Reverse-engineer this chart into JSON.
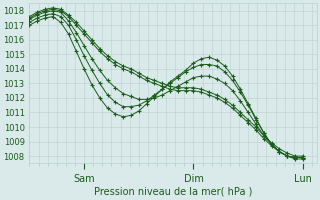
{
  "xlabel": "Pression niveau de la mer( hPa )",
  "bg_color": "#daeaea",
  "grid_color": "#b8d0d0",
  "line_color": "#1a5c1a",
  "ylim": [
    1007.5,
    1018.5
  ],
  "yticks": [
    1008,
    1009,
    1010,
    1011,
    1012,
    1013,
    1014,
    1015,
    1016,
    1017,
    1018
  ],
  "xtick_labels": [
    "Sam",
    "Dim",
    "Lun"
  ],
  "xtick_positions": [
    24,
    72,
    120
  ],
  "xlim": [
    0,
    126
  ],
  "series": [
    [
      1017.5,
      1017.8,
      1018.0,
      1018.1,
      1018.0,
      1017.6,
      1017.0,
      1016.4,
      1015.8,
      1015.2,
      1014.7,
      1014.3,
      1014.0,
      1013.8,
      1013.5,
      1013.2,
      1013.0,
      1012.8,
      1012.6,
      1012.5,
      1012.5,
      1012.5,
      1012.4,
      1012.2,
      1012.0,
      1011.7,
      1011.3,
      1010.8,
      1010.3,
      1009.8,
      1009.2,
      1008.7,
      1008.3,
      1008.0,
      1007.8,
      1007.8
    ],
    [
      1017.6,
      1017.9,
      1018.1,
      1018.2,
      1018.1,
      1017.7,
      1017.2,
      1016.6,
      1016.0,
      1015.4,
      1014.9,
      1014.5,
      1014.2,
      1014.0,
      1013.7,
      1013.4,
      1013.2,
      1013.0,
      1012.8,
      1012.7,
      1012.7,
      1012.7,
      1012.6,
      1012.4,
      1012.2,
      1011.9,
      1011.5,
      1011.0,
      1010.5,
      1010.0,
      1009.4,
      1008.9,
      1008.5,
      1008.2,
      1008.0,
      1008.0
    ],
    [
      1017.4,
      1017.7,
      1017.9,
      1018.0,
      1017.9,
      1017.3,
      1016.5,
      1015.6,
      1014.7,
      1013.9,
      1013.2,
      1012.7,
      1012.3,
      1012.1,
      1011.9,
      1011.9,
      1012.0,
      1012.2,
      1012.5,
      1012.8,
      1013.1,
      1013.4,
      1013.5,
      1013.5,
      1013.3,
      1013.0,
      1012.5,
      1011.8,
      1011.0,
      1010.2,
      1009.4,
      1008.8,
      1008.3,
      1008.0,
      1007.9,
      1007.9
    ],
    [
      1017.2,
      1017.5,
      1017.7,
      1017.8,
      1017.6,
      1017.0,
      1016.0,
      1014.9,
      1013.9,
      1013.0,
      1012.2,
      1011.7,
      1011.4,
      1011.4,
      1011.5,
      1011.8,
      1012.2,
      1012.6,
      1013.0,
      1013.4,
      1013.8,
      1014.1,
      1014.3,
      1014.3,
      1014.2,
      1013.8,
      1013.2,
      1012.4,
      1011.5,
      1010.5,
      1009.6,
      1008.8,
      1008.3,
      1008.0,
      1007.9,
      1007.9
    ],
    [
      1017.0,
      1017.3,
      1017.5,
      1017.6,
      1017.2,
      1016.4,
      1015.2,
      1014.0,
      1012.9,
      1012.0,
      1011.3,
      1010.9,
      1010.7,
      1010.8,
      1011.1,
      1011.6,
      1012.1,
      1012.6,
      1013.1,
      1013.5,
      1013.9,
      1014.4,
      1014.7,
      1014.8,
      1014.6,
      1014.2,
      1013.5,
      1012.6,
      1011.6,
      1010.6,
      1009.6,
      1008.8,
      1008.3,
      1008.0,
      1007.9,
      1007.9
    ]
  ]
}
